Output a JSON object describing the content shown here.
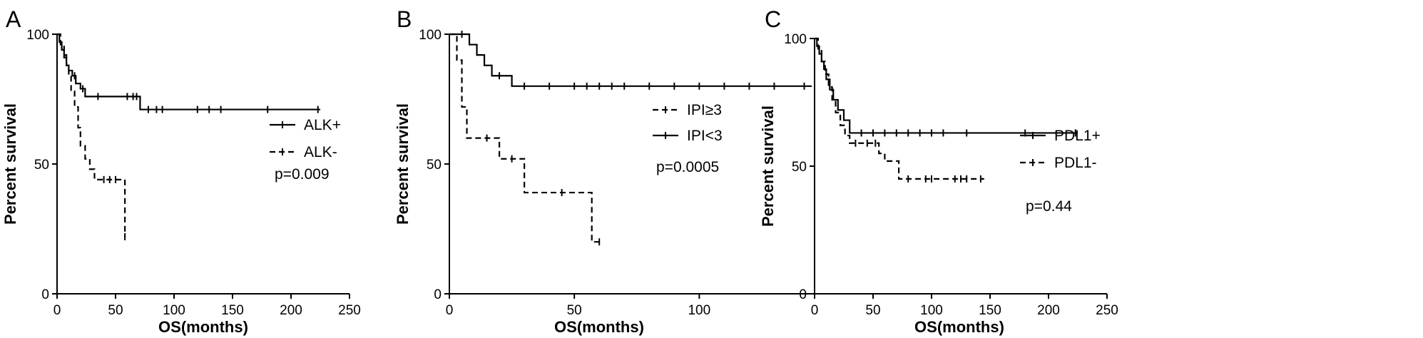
{
  "chart_data": [
    {
      "type": "line",
      "panel_label": "A",
      "xlabel": "OS(months)",
      "ylabel": "Percent survival",
      "xlim": [
        0,
        250
      ],
      "ylim": [
        0,
        100
      ],
      "xticks": [
        0,
        50,
        100,
        150,
        200,
        250
      ],
      "yticks": [
        0,
        50,
        100
      ],
      "annotation": "p=0.009",
      "legend_placement": "center-right",
      "series": [
        {
          "name": "ALK+",
          "style": "solid",
          "x": [
            0,
            2,
            4,
            6,
            8,
            10,
            13,
            16,
            20,
            24,
            71,
            225
          ],
          "y": [
            100,
            97,
            94,
            91,
            88,
            86,
            84,
            81,
            79,
            76,
            71,
            71
          ],
          "censor_x": [
            15,
            22,
            35,
            60,
            65,
            68,
            78,
            85,
            90,
            120,
            130,
            140,
            180,
            223
          ]
        },
        {
          "name": "ALK-",
          "style": "dashed",
          "x": [
            0,
            3,
            6,
            8,
            10,
            12,
            15,
            18,
            20,
            24,
            28,
            32,
            56,
            58
          ],
          "y": [
            100,
            96,
            92,
            88,
            84,
            78,
            72,
            64,
            57,
            52,
            48,
            44,
            44,
            22
          ],
          "censor_x": [
            40,
            45,
            50,
            58
          ]
        }
      ]
    },
    {
      "type": "line",
      "panel_label": "B",
      "xlabel": "OS(months)",
      "ylabel": "Percent survival",
      "xlim": [
        0,
        145
      ],
      "ylim": [
        0,
        100
      ],
      "xticks": [
        0,
        50,
        100
      ],
      "yticks": [
        0,
        50,
        100
      ],
      "annotation": "p=0.0005",
      "legend_placement": "center-right",
      "series": [
        {
          "name": "IPI≥3",
          "style": "dashed",
          "x": [
            0,
            3,
            5,
            7,
            20,
            30,
            57,
            60
          ],
          "y": [
            100,
            90,
            72,
            60,
            52,
            39,
            20,
            20
          ],
          "censor_x": [
            15,
            25,
            45,
            60
          ]
        },
        {
          "name": "IPI<3",
          "style": "solid",
          "x": [
            0,
            8,
            11,
            14,
            17,
            25,
            145
          ],
          "y": [
            100,
            96,
            92,
            88,
            84,
            80,
            80
          ],
          "censor_x": [
            5,
            20,
            30,
            40,
            50,
            55,
            60,
            65,
            70,
            80,
            90,
            100,
            110,
            120,
            130,
            142
          ]
        }
      ]
    },
    {
      "type": "line",
      "panel_label": "C",
      "xlabel": "OS(months)",
      "ylabel": "Percent survival",
      "xlim": [
        0,
        250
      ],
      "ylim": [
        0,
        100
      ],
      "xticks": [
        0,
        50,
        100,
        150,
        200,
        250
      ],
      "yticks": [
        0,
        50,
        100
      ],
      "annotation": "p=0.44",
      "legend_placement": "center-right",
      "series": [
        {
          "name": "PDL1+",
          "style": "solid",
          "x": [
            0,
            2,
            4,
            6,
            8,
            10,
            13,
            16,
            20,
            25,
            30,
            225
          ],
          "y": [
            100,
            97,
            94,
            91,
            88,
            84,
            80,
            76,
            72,
            68,
            63,
            63
          ],
          "censor_x": [
            40,
            50,
            60,
            70,
            80,
            90,
            100,
            110,
            130,
            180,
            223
          ]
        },
        {
          "name": "PDL1-",
          "style": "dashed",
          "x": [
            0,
            3,
            6,
            9,
            12,
            15,
            18,
            22,
            26,
            30,
            55,
            60,
            72,
            145
          ],
          "y": [
            100,
            96,
            91,
            86,
            81,
            76,
            71,
            66,
            62,
            59,
            55,
            52,
            45,
            45
          ],
          "censor_x": [
            35,
            45,
            52,
            80,
            95,
            100,
            120,
            125,
            130,
            142
          ]
        }
      ]
    }
  ]
}
